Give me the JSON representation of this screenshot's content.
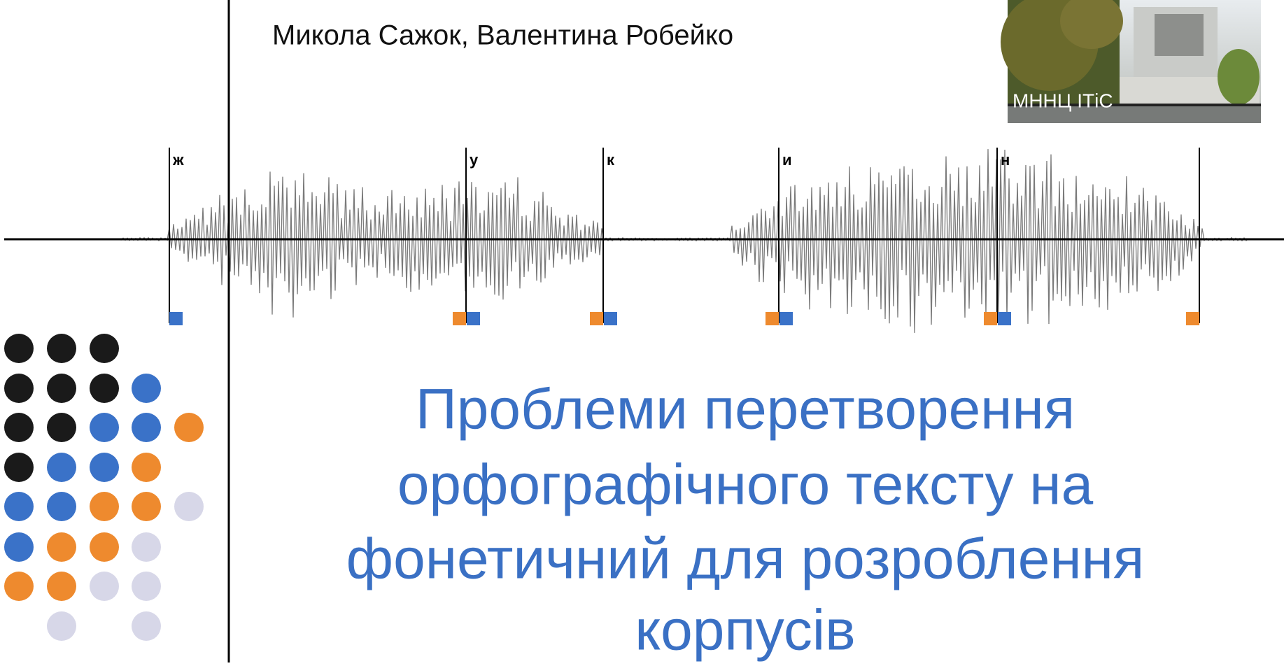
{
  "header": {
    "authors": "Микола Сажок, Валентина Робейко",
    "photo_caption": "МННЦ ІТіС"
  },
  "waveform": {
    "labels": [
      "ж",
      "у",
      "к",
      "и",
      "н"
    ]
  },
  "title": {
    "lines": [
      "Проблеми перетворення",
      "орфографічного тексту на",
      "фонетичний для розроблення",
      "корпусів"
    ]
  }
}
